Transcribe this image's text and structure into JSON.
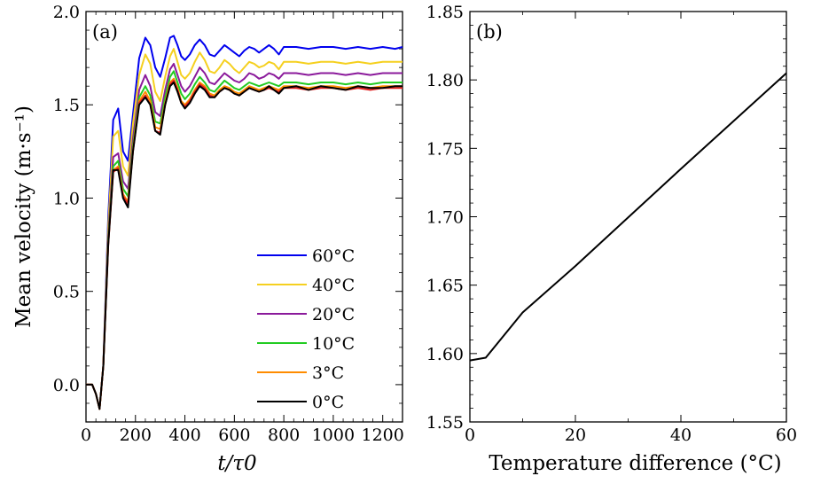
{
  "chart_data": [
    {
      "type": "line",
      "panel_label": "(a)",
      "ylabel": "Mean velocity (m·s⁻¹)",
      "xlabel": "t/τ0",
      "xlim": [
        0,
        1280
      ],
      "ylim": [
        -0.2,
        2.0
      ],
      "xticks": [
        0,
        200,
        400,
        600,
        800,
        1000,
        1200
      ],
      "xtick_labels": [
        "0",
        "200",
        "400",
        "600",
        "800",
        "1000",
        "1200"
      ],
      "yticks": [
        0.0,
        0.5,
        1.0,
        1.5,
        2.0
      ],
      "ytick_labels": [
        "0.0",
        "0.5",
        "1.0",
        "1.5",
        "2.0"
      ],
      "grid": false,
      "legend_position": "lower-right",
      "series": [
        {
          "name": "60°C",
          "color": "#0000ee",
          "x": [
            0,
            25,
            40,
            55,
            70,
            90,
            110,
            130,
            150,
            170,
            190,
            215,
            240,
            260,
            280,
            300,
            320,
            340,
            355,
            370,
            385,
            400,
            420,
            440,
            460,
            480,
            500,
            520,
            540,
            560,
            580,
            600,
            620,
            640,
            660,
            680,
            700,
            720,
            740,
            760,
            780,
            800,
            850,
            900,
            950,
            1000,
            1050,
            1100,
            1150,
            1200,
            1250,
            1280
          ],
          "y": [
            0,
            0,
            -0.05,
            -0.13,
            0.1,
            0.9,
            1.42,
            1.48,
            1.25,
            1.2,
            1.45,
            1.75,
            1.86,
            1.82,
            1.7,
            1.65,
            1.75,
            1.86,
            1.87,
            1.82,
            1.76,
            1.74,
            1.77,
            1.82,
            1.85,
            1.82,
            1.77,
            1.76,
            1.79,
            1.82,
            1.8,
            1.78,
            1.76,
            1.79,
            1.81,
            1.8,
            1.78,
            1.8,
            1.82,
            1.8,
            1.77,
            1.81,
            1.81,
            1.8,
            1.81,
            1.81,
            1.8,
            1.81,
            1.8,
            1.81,
            1.8,
            1.81
          ]
        },
        {
          "name": "40°C",
          "color": "#f5d020",
          "x": [
            0,
            25,
            40,
            55,
            70,
            90,
            110,
            130,
            150,
            170,
            190,
            215,
            240,
            260,
            280,
            300,
            320,
            340,
            355,
            370,
            385,
            400,
            420,
            440,
            460,
            480,
            500,
            520,
            540,
            560,
            580,
            600,
            620,
            640,
            660,
            680,
            700,
            720,
            740,
            760,
            780,
            800,
            850,
            900,
            950,
            1000,
            1050,
            1100,
            1150,
            1200,
            1250,
            1280
          ],
          "y": [
            0,
            0,
            -0.05,
            -0.13,
            0.1,
            0.85,
            1.33,
            1.36,
            1.17,
            1.12,
            1.4,
            1.66,
            1.77,
            1.72,
            1.57,
            1.52,
            1.65,
            1.76,
            1.8,
            1.73,
            1.66,
            1.64,
            1.67,
            1.73,
            1.78,
            1.74,
            1.68,
            1.67,
            1.7,
            1.74,
            1.72,
            1.69,
            1.67,
            1.7,
            1.73,
            1.72,
            1.7,
            1.71,
            1.73,
            1.72,
            1.69,
            1.73,
            1.73,
            1.72,
            1.73,
            1.73,
            1.72,
            1.73,
            1.72,
            1.73,
            1.73,
            1.73
          ]
        },
        {
          "name": "20°C",
          "color": "#8b1a9b",
          "x": [
            0,
            25,
            40,
            55,
            70,
            90,
            110,
            130,
            150,
            170,
            190,
            215,
            240,
            260,
            280,
            300,
            320,
            340,
            355,
            370,
            385,
            400,
            420,
            440,
            460,
            480,
            500,
            520,
            540,
            560,
            580,
            600,
            620,
            640,
            660,
            680,
            700,
            720,
            740,
            760,
            780,
            800,
            850,
            900,
            950,
            1000,
            1050,
            1100,
            1150,
            1200,
            1250,
            1280
          ],
          "y": [
            0,
            0,
            -0.05,
            -0.13,
            0.1,
            0.8,
            1.22,
            1.24,
            1.09,
            1.05,
            1.32,
            1.58,
            1.66,
            1.6,
            1.46,
            1.44,
            1.58,
            1.69,
            1.72,
            1.66,
            1.6,
            1.57,
            1.6,
            1.65,
            1.7,
            1.67,
            1.62,
            1.61,
            1.64,
            1.67,
            1.65,
            1.63,
            1.62,
            1.64,
            1.67,
            1.66,
            1.64,
            1.65,
            1.67,
            1.66,
            1.64,
            1.67,
            1.67,
            1.66,
            1.67,
            1.67,
            1.66,
            1.67,
            1.66,
            1.67,
            1.67,
            1.67
          ]
        },
        {
          "name": "10°C",
          "color": "#22cc22",
          "x": [
            0,
            25,
            40,
            55,
            70,
            90,
            110,
            130,
            150,
            170,
            190,
            215,
            240,
            260,
            280,
            300,
            320,
            340,
            355,
            370,
            385,
            400,
            420,
            440,
            460,
            480,
            500,
            520,
            540,
            560,
            580,
            600,
            620,
            640,
            660,
            680,
            700,
            720,
            740,
            760,
            780,
            800,
            850,
            900,
            950,
            1000,
            1050,
            1100,
            1150,
            1200,
            1250,
            1280
          ],
          "y": [
            0,
            0,
            -0.05,
            -0.13,
            0.1,
            0.78,
            1.17,
            1.2,
            1.05,
            1.01,
            1.28,
            1.54,
            1.6,
            1.55,
            1.41,
            1.4,
            1.54,
            1.65,
            1.68,
            1.62,
            1.56,
            1.53,
            1.56,
            1.61,
            1.65,
            1.62,
            1.58,
            1.57,
            1.6,
            1.63,
            1.61,
            1.59,
            1.58,
            1.6,
            1.62,
            1.61,
            1.6,
            1.61,
            1.62,
            1.61,
            1.6,
            1.62,
            1.62,
            1.61,
            1.62,
            1.62,
            1.61,
            1.62,
            1.61,
            1.62,
            1.62,
            1.62
          ]
        },
        {
          "name": "3°C",
          "color": "#ff8c00",
          "x": [
            0,
            25,
            40,
            55,
            70,
            90,
            110,
            130,
            150,
            170,
            190,
            215,
            240,
            260,
            280,
            300,
            320,
            340,
            355,
            370,
            385,
            400,
            420,
            440,
            460,
            480,
            500,
            520,
            540,
            560,
            580,
            600,
            620,
            640,
            660,
            680,
            700,
            720,
            740,
            760,
            780,
            800,
            850,
            900,
            950,
            1000,
            1050,
            1100,
            1150,
            1200,
            1250,
            1280
          ],
          "y": [
            0,
            0,
            -0.05,
            -0.13,
            0.1,
            0.76,
            1.15,
            1.17,
            1.02,
            0.98,
            1.26,
            1.52,
            1.57,
            1.52,
            1.38,
            1.37,
            1.51,
            1.62,
            1.64,
            1.59,
            1.52,
            1.5,
            1.53,
            1.58,
            1.62,
            1.6,
            1.56,
            1.55,
            1.58,
            1.6,
            1.59,
            1.57,
            1.56,
            1.58,
            1.6,
            1.59,
            1.58,
            1.59,
            1.6,
            1.59,
            1.58,
            1.6,
            1.6,
            1.59,
            1.6,
            1.6,
            1.59,
            1.6,
            1.59,
            1.6,
            1.6,
            1.6
          ]
        },
        {
          "name": "",
          "color": "#e02020",
          "x": [
            0,
            25,
            40,
            55,
            70,
            90,
            110,
            130,
            150,
            170,
            190,
            215,
            240,
            260,
            280,
            300,
            320,
            340,
            355,
            370,
            385,
            400,
            420,
            440,
            460,
            480,
            500,
            520,
            540,
            560,
            580,
            600,
            620,
            640,
            660,
            680,
            700,
            720,
            740,
            760,
            780,
            800,
            850,
            900,
            950,
            1000,
            1050,
            1100,
            1150,
            1200,
            1250,
            1280
          ],
          "y": [
            0,
            0,
            -0.05,
            -0.13,
            0.1,
            0.75,
            1.14,
            1.16,
            1.01,
            0.97,
            1.25,
            1.51,
            1.55,
            1.5,
            1.36,
            1.35,
            1.5,
            1.61,
            1.63,
            1.58,
            1.51,
            1.49,
            1.52,
            1.57,
            1.61,
            1.59,
            1.55,
            1.54,
            1.57,
            1.59,
            1.58,
            1.56,
            1.55,
            1.57,
            1.59,
            1.58,
            1.57,
            1.58,
            1.59,
            1.58,
            1.57,
            1.59,
            1.59,
            1.58,
            1.59,
            1.59,
            1.58,
            1.59,
            1.58,
            1.59,
            1.59,
            1.59
          ]
        },
        {
          "name": "0°C",
          "color": "#000000",
          "x": [
            0,
            25,
            40,
            55,
            70,
            90,
            110,
            130,
            150,
            170,
            190,
            215,
            240,
            260,
            280,
            300,
            320,
            340,
            355,
            370,
            385,
            400,
            420,
            440,
            460,
            480,
            500,
            520,
            540,
            560,
            580,
            600,
            620,
            640,
            660,
            680,
            700,
            720,
            740,
            760,
            780,
            800,
            850,
            900,
            950,
            1000,
            1050,
            1100,
            1150,
            1200,
            1250,
            1280
          ],
          "y": [
            0,
            0,
            -0.05,
            -0.13,
            0.1,
            0.75,
            1.15,
            1.15,
            1.0,
            0.95,
            1.25,
            1.5,
            1.54,
            1.5,
            1.36,
            1.34,
            1.5,
            1.6,
            1.62,
            1.57,
            1.51,
            1.48,
            1.51,
            1.56,
            1.6,
            1.58,
            1.54,
            1.54,
            1.57,
            1.59,
            1.58,
            1.56,
            1.55,
            1.57,
            1.59,
            1.58,
            1.57,
            1.58,
            1.6,
            1.58,
            1.56,
            1.59,
            1.6,
            1.58,
            1.6,
            1.59,
            1.58,
            1.6,
            1.59,
            1.59,
            1.6,
            1.6
          ]
        }
      ]
    },
    {
      "type": "line",
      "panel_label": "(b)",
      "xlabel": "Temperature difference (°C)",
      "ylabel": "",
      "xlim": [
        0,
        60
      ],
      "ylim": [
        1.55,
        1.85
      ],
      "xticks": [
        0,
        20,
        40,
        60
      ],
      "xtick_labels": [
        "0",
        "20",
        "40",
        "60"
      ],
      "yticks": [
        1.55,
        1.6,
        1.65,
        1.7,
        1.75,
        1.8,
        1.85
      ],
      "ytick_labels": [
        "1.55",
        "1.60",
        "1.65",
        "1.70",
        "1.75",
        "1.80",
        "1.85"
      ],
      "grid": false,
      "series": [
        {
          "name": "",
          "color": "#000000",
          "x": [
            0,
            3,
            10,
            20,
            40,
            60
          ],
          "y": [
            1.595,
            1.597,
            1.63,
            1.664,
            1.735,
            1.805
          ]
        }
      ]
    }
  ]
}
